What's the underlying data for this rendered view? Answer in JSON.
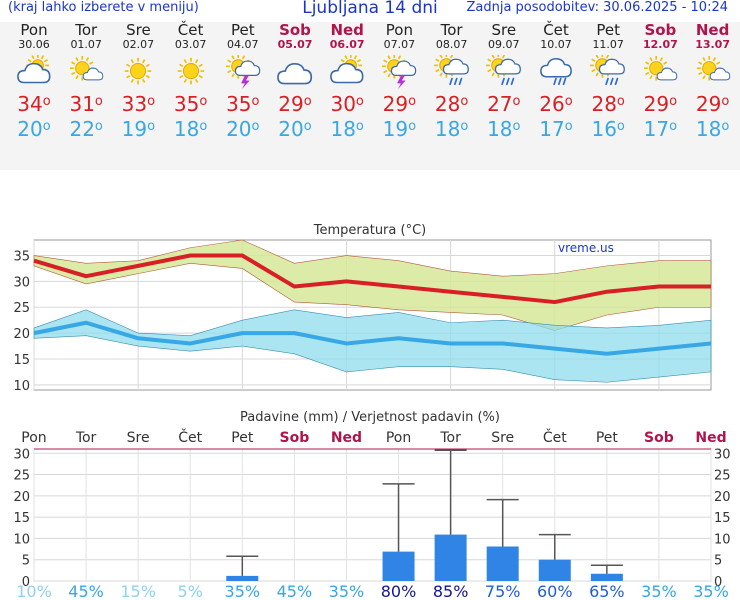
{
  "header": {
    "menu_hint": "(kraj lahko izberete v meniju)",
    "title": "Ljubljana 14 dni",
    "updated": "Zadnja posodobitev: 30.06.2025 - 10:24"
  },
  "days": [
    {
      "name": "Pon",
      "date": "30.06",
      "weekend": false,
      "icon": "sun-cloud-icon",
      "tmax": "34",
      "tmin": "20"
    },
    {
      "name": "Tor",
      "date": "01.07",
      "weekend": false,
      "icon": "sun-small-cloud-icon",
      "tmax": "31",
      "tmin": "22"
    },
    {
      "name": "Sre",
      "date": "02.07",
      "weekend": false,
      "icon": "sun-icon",
      "tmax": "33",
      "tmin": "19"
    },
    {
      "name": "Čet",
      "date": "03.07",
      "weekend": false,
      "icon": "sun-icon",
      "tmax": "35",
      "tmin": "18"
    },
    {
      "name": "Pet",
      "date": "04.07",
      "weekend": false,
      "icon": "sun-cloud-thunder-icon",
      "tmax": "35",
      "tmin": "20"
    },
    {
      "name": "Sob",
      "date": "05.07",
      "weekend": true,
      "icon": "cloud-icon",
      "tmax": "29",
      "tmin": "20"
    },
    {
      "name": "Ned",
      "date": "06.07",
      "weekend": true,
      "icon": "sun-cloud-icon",
      "tmax": "30",
      "tmin": "18"
    },
    {
      "name": "Pon",
      "date": "07.07",
      "weekend": false,
      "icon": "sun-cloud-thunder-icon",
      "tmax": "29",
      "tmin": "19"
    },
    {
      "name": "Tor",
      "date": "08.07",
      "weekend": false,
      "icon": "sun-cloud-rain-icon",
      "tmax": "28",
      "tmin": "18"
    },
    {
      "name": "Sre",
      "date": "09.07",
      "weekend": false,
      "icon": "sun-cloud-rain-icon",
      "tmax": "27",
      "tmin": "18"
    },
    {
      "name": "Čet",
      "date": "10.07",
      "weekend": false,
      "icon": "cloud-rain-icon",
      "tmax": "26",
      "tmin": "17"
    },
    {
      "name": "Pet",
      "date": "11.07",
      "weekend": false,
      "icon": "sun-cloud-rain-icon",
      "tmax": "28",
      "tmin": "16"
    },
    {
      "name": "Sob",
      "date": "12.07",
      "weekend": true,
      "icon": "sun-small-cloud-icon",
      "tmax": "29",
      "tmin": "17"
    },
    {
      "name": "Ned",
      "date": "13.07",
      "weekend": true,
      "icon": "sun-small-cloud-icon",
      "tmax": "29",
      "tmin": "18"
    }
  ],
  "colors": {
    "accent_blue": "#1a36c9",
    "tmax_red": "#d81f26",
    "tmin_blue": "#38a7e6",
    "weekend": "#b0144c",
    "temp_max_band": "#d7e89a",
    "temp_min_band": "#8fdcec",
    "precip_bar": "#2f84e6"
  },
  "chart_data": [
    {
      "type": "line",
      "title": "Temperatura (°C)",
      "watermark": "vreme.us",
      "x": [
        "30.06",
        "01.07",
        "02.07",
        "03.07",
        "04.07",
        "05.07",
        "06.07",
        "07.07",
        "08.07",
        "09.07",
        "10.07",
        "11.07",
        "12.07",
        "13.07"
      ],
      "ylim": [
        9,
        38
      ],
      "yticks": [
        10,
        15,
        20,
        25,
        30,
        35
      ],
      "series": [
        {
          "values": [
            34,
            31,
            33,
            35,
            35,
            29,
            30,
            29,
            28,
            27,
            26,
            28,
            29,
            29
          ],
          "band_upper": [
            35,
            33.5,
            34,
            36.5,
            38,
            33.5,
            35,
            34,
            32,
            31,
            31.5,
            33,
            34,
            34
          ],
          "band_lower": [
            33,
            29.5,
            31.5,
            33.5,
            32.5,
            26,
            25.5,
            24.5,
            24,
            23.5,
            20.5,
            23.5,
            25,
            25
          ]
        },
        {
          "values": [
            20,
            22,
            19,
            18,
            20,
            20,
            18,
            19,
            18,
            18,
            17,
            16,
            17,
            18
          ],
          "band_upper": [
            21,
            24.5,
            20,
            19.5,
            22.5,
            24.5,
            23,
            24,
            22,
            22.5,
            21.5,
            21,
            21.5,
            22.5
          ],
          "band_lower": [
            19,
            19.5,
            17.5,
            16.5,
            17.5,
            16,
            12.5,
            13.5,
            13.5,
            13,
            11,
            10.5,
            11.5,
            12.5
          ]
        }
      ],
      "grid": true
    },
    {
      "type": "bar",
      "title": "Padavine (mm) / Verjetnost padavin (%)",
      "categories": [
        "Pon",
        "Tor",
        "Sre",
        "Čet",
        "Pet",
        "Sob",
        "Ned",
        "Pon",
        "Tor",
        "Sre",
        "Čet",
        "Pet",
        "Sob",
        "Ned"
      ],
      "weekend": [
        false,
        false,
        false,
        false,
        false,
        true,
        true,
        false,
        false,
        false,
        false,
        false,
        true,
        true
      ],
      "values": [
        0,
        0,
        0,
        0,
        1.2,
        0,
        0,
        6.9,
        10.9,
        8.1,
        5,
        1.7,
        0,
        0
      ],
      "range_max": [
        0,
        0,
        0,
        0,
        5.8,
        0,
        0,
        22.8,
        30.7,
        19.1,
        10.9,
        3.7,
        0,
        0
      ],
      "probability": [
        "10%",
        "45%",
        "15%",
        "5%",
        "35%",
        "45%",
        "35%",
        "80%",
        "85%",
        "75%",
        "60%",
        "65%",
        "35%",
        "35%"
      ],
      "prob_values": [
        10,
        45,
        15,
        5,
        35,
        45,
        35,
        80,
        85,
        75,
        60,
        65,
        35,
        35
      ],
      "ylim": [
        0,
        31
      ],
      "yticks": [
        0,
        5,
        10,
        15,
        20,
        25,
        30
      ],
      "grid": true
    }
  ]
}
